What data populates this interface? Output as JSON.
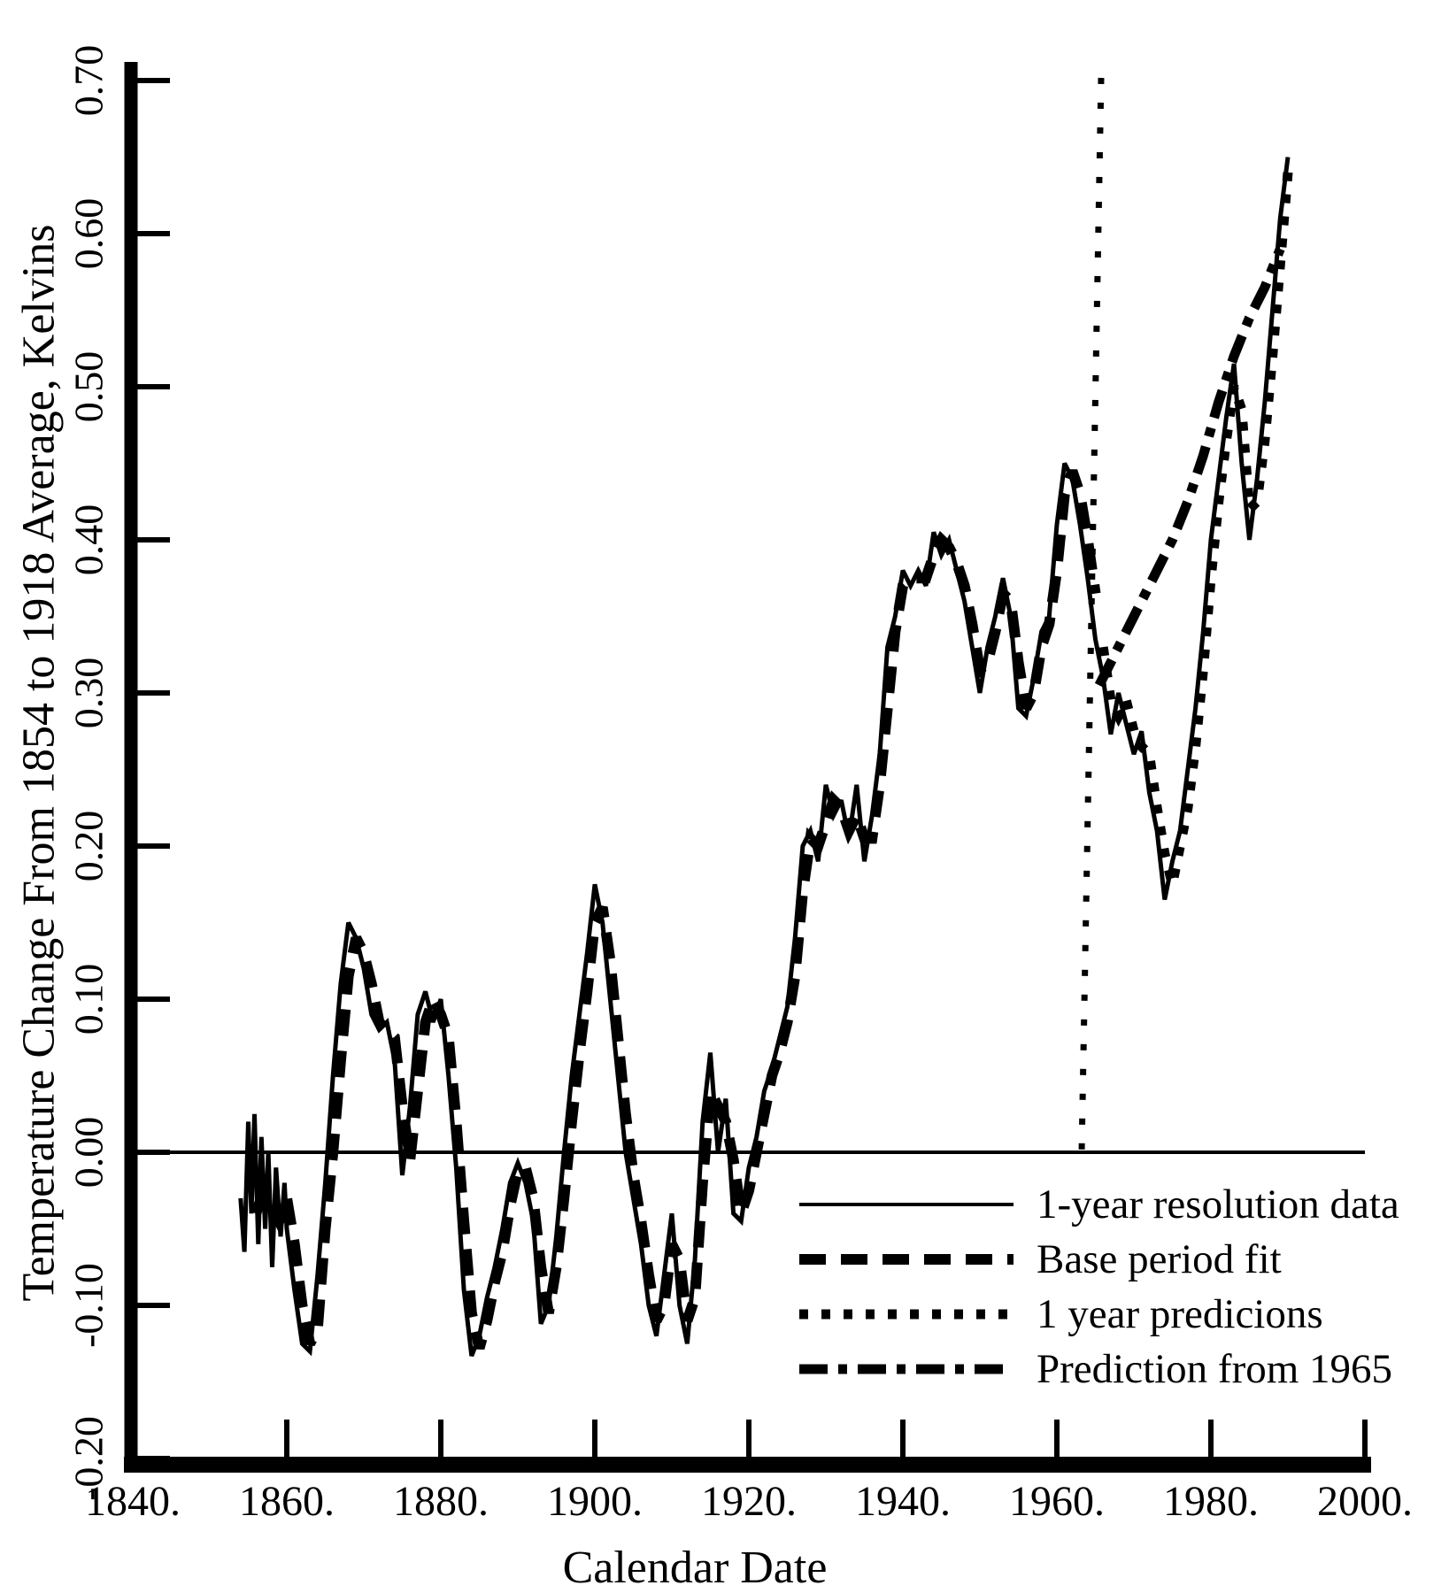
{
  "colors": {
    "ink": "#000000",
    "background": "#ffffff"
  },
  "figure": {
    "y_axis_title": "Temperature Change From 1854 to 1918 Average, Kelvins",
    "x_axis_title": "Calendar Date"
  },
  "legend": {
    "items": [
      {
        "label": "1-year resolution data",
        "style": "solid"
      },
      {
        "label": "Base period fit",
        "style": "dashed"
      },
      {
        "label": "1 year predicions",
        "style": "dotted"
      },
      {
        "label": "Prediction from 1965",
        "style": "dashdot"
      }
    ]
  },
  "chart_data": {
    "type": "line",
    "title": "",
    "xlabel": "Calendar Date",
    "ylabel": "Temperature Change From 1854 to 1918 Average, Kelvins",
    "xlim": [
      1840,
      2000
    ],
    "ylim": [
      -0.2,
      0.7
    ],
    "grid": false,
    "baseline": 0.0,
    "legend_position": "lower-right-inside",
    "x_tick_values": [
      1840,
      1860,
      1880,
      1900,
      1920,
      1940,
      1960,
      1980,
      2000
    ],
    "x_tick_labels": [
      "1840.",
      "1860.",
      "1880.",
      "1900.",
      "1920.",
      "1940.",
      "1960.",
      "1980.",
      "2000."
    ],
    "y_tick_values": [
      0.7,
      0.6,
      0.5,
      0.4,
      0.3,
      0.2,
      0.1,
      0.0,
      -0.1,
      -0.2
    ],
    "y_tick_labels": [
      "0.70",
      "0.60",
      "0.50",
      "0.40",
      "0.30",
      "0.20",
      "0.10",
      "0.00",
      "-0.10",
      "-0.20"
    ],
    "reference_line": {
      "x": 1965,
      "orientation": "vertical",
      "style": "dotted",
      "from_y": 0.7,
      "to_y": 0.0
    },
    "series": [
      {
        "name": "1-year resolution data",
        "style": "solid",
        "points": [
          [
            1854.0,
            -0.03
          ],
          [
            1854.5,
            -0.065
          ],
          [
            1855.0,
            0.02
          ],
          [
            1855.4,
            -0.04
          ],
          [
            1855.8,
            0.025
          ],
          [
            1856.3,
            -0.06
          ],
          [
            1856.7,
            0.01
          ],
          [
            1857.2,
            -0.05
          ],
          [
            1857.6,
            0.0
          ],
          [
            1858.1,
            -0.075
          ],
          [
            1858.6,
            -0.01
          ],
          [
            1859.2,
            -0.055
          ],
          [
            1859.7,
            -0.02
          ],
          [
            1860,
            -0.05
          ],
          [
            1861,
            -0.09
          ],
          [
            1862,
            -0.125
          ],
          [
            1863,
            -0.13
          ],
          [
            1864,
            -0.08
          ],
          [
            1865,
            -0.02
          ],
          [
            1866,
            0.05
          ],
          [
            1867,
            0.11
          ],
          [
            1868,
            0.15
          ],
          [
            1869,
            0.14
          ],
          [
            1870,
            0.12
          ],
          [
            1871,
            0.09
          ],
          [
            1872,
            0.08
          ],
          [
            1873,
            0.085
          ],
          [
            1874,
            0.06
          ],
          [
            1875,
            -0.015
          ],
          [
            1876,
            0.03
          ],
          [
            1877,
            0.09
          ],
          [
            1878,
            0.105
          ],
          [
            1879,
            0.085
          ],
          [
            1880,
            0.1
          ],
          [
            1881,
            0.05
          ],
          [
            1882,
            -0.01
          ],
          [
            1883,
            -0.09
          ],
          [
            1884,
            -0.133
          ],
          [
            1885,
            -0.12
          ],
          [
            1886,
            -0.095
          ],
          [
            1887,
            -0.075
          ],
          [
            1888,
            -0.05
          ],
          [
            1889,
            -0.02
          ],
          [
            1890,
            -0.007
          ],
          [
            1891,
            -0.02
          ],
          [
            1892,
            -0.045
          ],
          [
            1893,
            -0.112
          ],
          [
            1894,
            -0.1
          ],
          [
            1895,
            -0.055
          ],
          [
            1896,
            0.0
          ],
          [
            1897,
            0.05
          ],
          [
            1898,
            0.09
          ],
          [
            1899,
            0.13
          ],
          [
            1900,
            0.175
          ],
          [
            1901,
            0.15
          ],
          [
            1902,
            0.1
          ],
          [
            1903,
            0.05
          ],
          [
            1904,
            0.0
          ],
          [
            1905,
            -0.03
          ],
          [
            1906,
            -0.06
          ],
          [
            1907,
            -0.1
          ],
          [
            1908,
            -0.12
          ],
          [
            1909,
            -0.08
          ],
          [
            1910,
            -0.04
          ],
          [
            1911,
            -0.1
          ],
          [
            1912,
            -0.125
          ],
          [
            1913,
            -0.07
          ],
          [
            1914,
            0.02
          ],
          [
            1915,
            0.065
          ],
          [
            1916,
            0.0
          ],
          [
            1917,
            0.035
          ],
          [
            1918,
            -0.04
          ],
          [
            1919,
            -0.045
          ],
          [
            1920,
            -0.01
          ],
          [
            1921,
            0.01
          ],
          [
            1922,
            0.04
          ],
          [
            1923,
            0.055
          ],
          [
            1924,
            0.075
          ],
          [
            1925,
            0.095
          ],
          [
            1926,
            0.14
          ],
          [
            1927,
            0.2
          ],
          [
            1928,
            0.21
          ],
          [
            1929,
            0.19
          ],
          [
            1930,
            0.24
          ],
          [
            1931,
            0.22
          ],
          [
            1932,
            0.23
          ],
          [
            1933,
            0.205
          ],
          [
            1934,
            0.24
          ],
          [
            1935,
            0.19
          ],
          [
            1936,
            0.22
          ],
          [
            1937,
            0.26
          ],
          [
            1938,
            0.33
          ],
          [
            1939,
            0.35
          ],
          [
            1940,
            0.38
          ],
          [
            1941,
            0.37
          ],
          [
            1942,
            0.38
          ],
          [
            1943,
            0.37
          ],
          [
            1944,
            0.405
          ],
          [
            1945,
            0.39
          ],
          [
            1946,
            0.4
          ],
          [
            1947,
            0.38
          ],
          [
            1948,
            0.36
          ],
          [
            1949,
            0.33
          ],
          [
            1950,
            0.3
          ],
          [
            1951,
            0.33
          ],
          [
            1952,
            0.35
          ],
          [
            1953,
            0.375
          ],
          [
            1954,
            0.35
          ],
          [
            1955,
            0.29
          ],
          [
            1956,
            0.285
          ],
          [
            1957,
            0.31
          ],
          [
            1958,
            0.34
          ],
          [
            1959,
            0.35
          ],
          [
            1960,
            0.41
          ],
          [
            1961,
            0.45
          ],
          [
            1962,
            0.44
          ],
          [
            1963,
            0.41
          ],
          [
            1964,
            0.375
          ],
          [
            1965,
            0.335
          ],
          [
            1966,
            0.31
          ],
          [
            1967,
            0.273
          ],
          [
            1968,
            0.3
          ],
          [
            1969,
            0.28
          ],
          [
            1970,
            0.26
          ],
          [
            1971,
            0.275
          ],
          [
            1972,
            0.235
          ],
          [
            1973,
            0.21
          ],
          [
            1974,
            0.165
          ],
          [
            1975,
            0.19
          ],
          [
            1976,
            0.21
          ],
          [
            1977,
            0.25
          ],
          [
            1978,
            0.29
          ],
          [
            1979,
            0.34
          ],
          [
            1980,
            0.4
          ],
          [
            1981,
            0.44
          ],
          [
            1982,
            0.48
          ],
          [
            1983,
            0.515
          ],
          [
            1984,
            0.45
          ],
          [
            1985,
            0.4
          ],
          [
            1986,
            0.44
          ],
          [
            1987,
            0.49
          ],
          [
            1988,
            0.55
          ],
          [
            1989,
            0.61
          ],
          [
            1990,
            0.65
          ]
        ]
      },
      {
        "name": "Base period fit",
        "style": "dashed",
        "points": [
          [
            1856,
            -0.04
          ],
          [
            1857,
            -0.025
          ],
          [
            1858,
            -0.035
          ],
          [
            1859,
            -0.045
          ],
          [
            1860,
            -0.03
          ],
          [
            1861,
            -0.06
          ],
          [
            1862,
            -0.1
          ],
          [
            1863,
            -0.125
          ],
          [
            1864,
            -0.115
          ],
          [
            1865,
            -0.05
          ],
          [
            1866,
            0.0
          ],
          [
            1867,
            0.06
          ],
          [
            1868,
            0.115
          ],
          [
            1869,
            0.14
          ],
          [
            1870,
            0.13
          ],
          [
            1871,
            0.11
          ],
          [
            1872,
            0.085
          ],
          [
            1873,
            0.08
          ],
          [
            1874,
            0.075
          ],
          [
            1875,
            0.03
          ],
          [
            1876,
            -0.005
          ],
          [
            1877,
            0.04
          ],
          [
            1878,
            0.085
          ],
          [
            1879,
            0.1
          ],
          [
            1880,
            0.09
          ],
          [
            1881,
            0.075
          ],
          [
            1882,
            0.02
          ],
          [
            1883,
            -0.045
          ],
          [
            1884,
            -0.105
          ],
          [
            1885,
            -0.128
          ],
          [
            1886,
            -0.11
          ],
          [
            1887,
            -0.085
          ],
          [
            1888,
            -0.065
          ],
          [
            1889,
            -0.035
          ],
          [
            1890,
            -0.012
          ],
          [
            1891,
            -0.01
          ],
          [
            1892,
            -0.03
          ],
          [
            1893,
            -0.075
          ],
          [
            1894,
            -0.105
          ],
          [
            1895,
            -0.075
          ],
          [
            1896,
            -0.03
          ],
          [
            1897,
            0.02
          ],
          [
            1898,
            0.065
          ],
          [
            1899,
            0.105
          ],
          [
            1900,
            0.15
          ],
          [
            1901,
            0.16
          ],
          [
            1902,
            0.125
          ],
          [
            1903,
            0.075
          ],
          [
            1904,
            0.025
          ],
          [
            1905,
            -0.015
          ],
          [
            1906,
            -0.045
          ],
          [
            1907,
            -0.08
          ],
          [
            1908,
            -0.11
          ],
          [
            1909,
            -0.1
          ],
          [
            1910,
            -0.06
          ],
          [
            1911,
            -0.07
          ],
          [
            1912,
            -0.11
          ],
          [
            1913,
            -0.095
          ],
          [
            1914,
            -0.02
          ],
          [
            1915,
            0.04
          ],
          [
            1916,
            0.03
          ],
          [
            1917,
            0.02
          ],
          [
            1918,
            -0.005
          ],
          [
            1919,
            -0.04
          ],
          [
            1920,
            -0.025
          ],
          [
            1921,
            0.0
          ],
          [
            1922,
            0.025
          ],
          [
            1923,
            0.05
          ],
          [
            1924,
            0.065
          ],
          [
            1925,
            0.085
          ],
          [
            1926,
            0.115
          ],
          [
            1927,
            0.17
          ],
          [
            1928,
            0.205
          ],
          [
            1929,
            0.2
          ],
          [
            1930,
            0.215
          ],
          [
            1931,
            0.23
          ],
          [
            1932,
            0.225
          ],
          [
            1933,
            0.21
          ],
          [
            1934,
            0.22
          ],
          [
            1935,
            0.205
          ],
          [
            1936,
            0.205
          ],
          [
            1937,
            0.24
          ],
          [
            1938,
            0.29
          ],
          [
            1939,
            0.34
          ],
          [
            1940,
            0.37
          ],
          [
            1941,
            0.375
          ],
          [
            1942,
            0.375
          ],
          [
            1943,
            0.375
          ],
          [
            1944,
            0.39
          ],
          [
            1945,
            0.4
          ],
          [
            1946,
            0.395
          ],
          [
            1947,
            0.385
          ],
          [
            1948,
            0.37
          ],
          [
            1949,
            0.345
          ],
          [
            1950,
            0.315
          ],
          [
            1951,
            0.32
          ],
          [
            1952,
            0.34
          ],
          [
            1953,
            0.365
          ],
          [
            1954,
            0.36
          ],
          [
            1955,
            0.32
          ],
          [
            1956,
            0.29
          ],
          [
            1957,
            0.3
          ],
          [
            1958,
            0.33
          ],
          [
            1959,
            0.345
          ],
          [
            1960,
            0.38
          ],
          [
            1961,
            0.43
          ],
          [
            1962,
            0.445
          ],
          [
            1963,
            0.43
          ],
          [
            1964,
            0.4
          ],
          [
            1965,
            0.365
          ]
        ]
      },
      {
        "name": "1 year predicions",
        "style": "dotted",
        "points": [
          [
            1966,
            0.33
          ],
          [
            1967,
            0.295
          ],
          [
            1968,
            0.285
          ],
          [
            1969,
            0.295
          ],
          [
            1970,
            0.275
          ],
          [
            1971,
            0.265
          ],
          [
            1972,
            0.26
          ],
          [
            1973,
            0.225
          ],
          [
            1974,
            0.195
          ],
          [
            1975,
            0.175
          ],
          [
            1976,
            0.2
          ],
          [
            1977,
            0.225
          ],
          [
            1978,
            0.265
          ],
          [
            1979,
            0.315
          ],
          [
            1980,
            0.375
          ],
          [
            1981,
            0.425
          ],
          [
            1982,
            0.465
          ],
          [
            1983,
            0.5
          ],
          [
            1984,
            0.485
          ],
          [
            1985,
            0.42
          ],
          [
            1986,
            0.425
          ],
          [
            1987,
            0.465
          ],
          [
            1988,
            0.52
          ],
          [
            1989,
            0.58
          ],
          [
            1990,
            0.64
          ]
        ]
      },
      {
        "name": "Prediction from 1965",
        "style": "dashdot",
        "points": [
          [
            1965.5,
            0.305
          ],
          [
            1967,
            0.32
          ],
          [
            1969,
            0.34
          ],
          [
            1971,
            0.36
          ],
          [
            1973,
            0.38
          ],
          [
            1975,
            0.4
          ],
          [
            1977,
            0.425
          ],
          [
            1979,
            0.455
          ],
          [
            1981,
            0.49
          ],
          [
            1983,
            0.52
          ],
          [
            1985,
            0.545
          ],
          [
            1987,
            0.565
          ],
          [
            1989,
            0.59
          ]
        ]
      }
    ]
  }
}
